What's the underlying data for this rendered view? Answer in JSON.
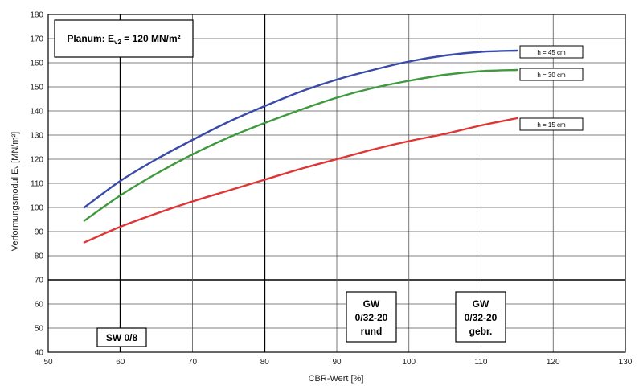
{
  "chart_data": {
    "type": "line",
    "xlabel": "CBR-Wert [%]",
    "ylabel": "Verformungsmodul Eᵥ [MN/m²]",
    "xlim": [
      50,
      130
    ],
    "ylim": [
      40,
      180
    ],
    "x_ticks": [
      50,
      60,
      70,
      80,
      90,
      100,
      110,
      120,
      130
    ],
    "y_ticks": [
      40,
      50,
      60,
      70,
      80,
      90,
      100,
      110,
      120,
      130,
      140,
      150,
      160,
      170,
      180
    ],
    "grid": true,
    "series": [
      {
        "name": "h = 45 cm",
        "color": "#3a4aa8",
        "x": [
          55,
          60,
          65,
          70,
          75,
          80,
          85,
          90,
          95,
          100,
          105,
          110,
          115
        ],
        "y": [
          100,
          111,
          120,
          128,
          135.5,
          142,
          148,
          153,
          157,
          160.5,
          163,
          164.5,
          165
        ]
      },
      {
        "name": "h = 30 cm",
        "color": "#3f9a3f",
        "x": [
          55,
          60,
          65,
          70,
          75,
          80,
          85,
          90,
          95,
          100,
          105,
          110,
          115
        ],
        "y": [
          94.5,
          105,
          114,
          122,
          129,
          135,
          140.5,
          145.5,
          149.5,
          152.5,
          155,
          156.5,
          157
        ]
      },
      {
        "name": "h = 15 cm",
        "color": "#e03535",
        "x": [
          55,
          60,
          65,
          70,
          75,
          80,
          85,
          90,
          95,
          100,
          105,
          110,
          115
        ],
        "y": [
          85.5,
          92,
          97.5,
          102.5,
          107,
          111.5,
          116,
          120,
          124,
          127.5,
          130.5,
          134,
          137
        ]
      }
    ],
    "annotations": {
      "planum": "Planum: E",
      "planum_sub": "v2",
      "planum_rest": " = 120 MN/m²",
      "soils": [
        {
          "lines": [
            "SW 0/8"
          ]
        },
        {
          "lines": [
            "GW",
            "0/32-20",
            "rund"
          ]
        },
        {
          "lines": [
            "GW",
            "0/32-20",
            "gebr."
          ]
        }
      ]
    }
  }
}
